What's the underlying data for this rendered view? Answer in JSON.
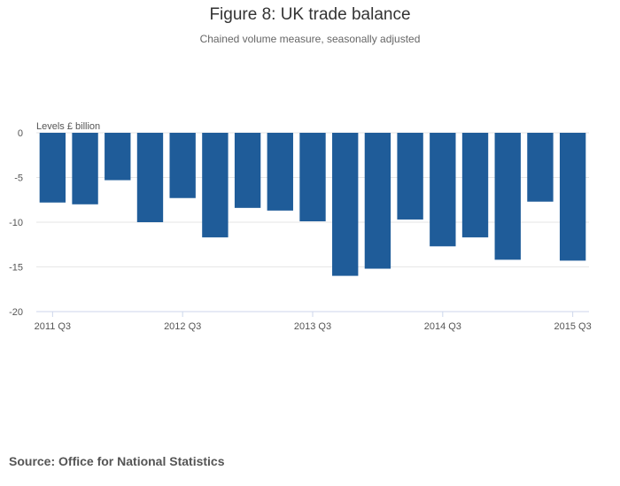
{
  "chart_data": {
    "type": "bar",
    "title": "Figure 8: UK trade balance",
    "subtitle": "Chained volume measure, seasonally adjusted",
    "ylabel": "Levels £ billion",
    "xlabel": "",
    "ylim": [
      -20,
      0
    ],
    "yticks": [
      0,
      -5,
      -10,
      -15,
      -20
    ],
    "grid": true,
    "color": "#1f5c99",
    "categories": [
      "2011 Q3",
      "2011 Q4",
      "2012 Q1",
      "2012 Q2",
      "2012 Q3",
      "2012 Q4",
      "2013 Q1",
      "2013 Q2",
      "2013 Q3",
      "2013 Q4",
      "2014 Q1",
      "2014 Q2",
      "2014 Q3",
      "2014 Q4",
      "2015 Q1",
      "2015 Q2",
      "2015 Q3"
    ],
    "xtick_labels": [
      "2011 Q3",
      "2012 Q3",
      "2013 Q3",
      "2014 Q3",
      "2015 Q3"
    ],
    "values": [
      -7.8,
      -8.0,
      -5.3,
      -10.0,
      -7.3,
      -11.7,
      -8.4,
      -8.7,
      -9.9,
      -16.0,
      -15.2,
      -9.7,
      -12.7,
      -11.7,
      -14.2,
      -7.7,
      -14.3
    ]
  },
  "source": "Source: Office for National Statistics"
}
